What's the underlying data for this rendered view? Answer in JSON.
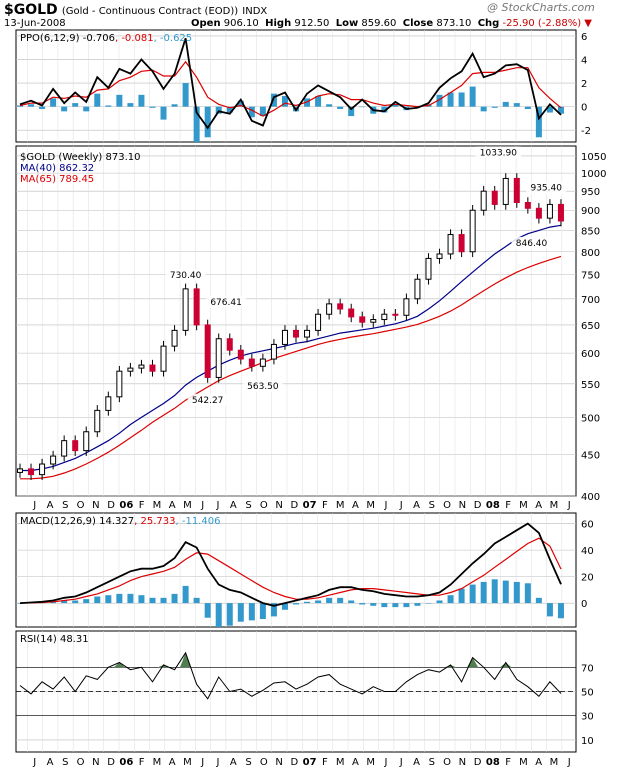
{
  "header": {
    "symbol": "$GOLD",
    "description": "(Gold - Continuous Contract (EOD))",
    "exchange": "INDX",
    "date": "13-Jun-2008",
    "open_label": "Open",
    "open": "906.10",
    "high_label": "High",
    "high": "912.50",
    "low_label": "Low",
    "low": "859.60",
    "close_label": "Close",
    "close": "873.10",
    "chg_label": "Chg",
    "chg": "-25.90 (-2.88%)",
    "watermark": "@ StockCharts.com"
  },
  "colors": {
    "up": "#000000",
    "down": "#cc0033",
    "ma40": "#00008b",
    "ma65": "#dd0000",
    "hist": "#3399cc",
    "rsi_fill": "#4f7f4f"
  },
  "chart_data": [
    {
      "type": "line",
      "title": "PPO(6,12,9)",
      "legend": [
        {
          "text": "PPO(6,12,9) -0.706"
        },
        {
          "text": ", -0.081",
          "color": "#dd0000"
        },
        {
          "text": ", -0.625",
          "color": "#3399cc"
        }
      ],
      "ylim": [
        -3,
        6.5
      ],
      "ticks": [
        6,
        4,
        2,
        0,
        -2
      ],
      "x": [
        0,
        3,
        6,
        9,
        12,
        15,
        18,
        21,
        24,
        27,
        30,
        33,
        36,
        39,
        42,
        45,
        48,
        51,
        54,
        57,
        60,
        63,
        66,
        69,
        72,
        75,
        78,
        81,
        84,
        87,
        90,
        93,
        96,
        99,
        102,
        105,
        108,
        111,
        114,
        117,
        120,
        123,
        126,
        129,
        132,
        135,
        138,
        141,
        144,
        147
      ],
      "series": [
        {
          "name": "PPO",
          "values": [
            0.2,
            0.5,
            0.1,
            1.5,
            0.3,
            1.2,
            0.4,
            2.5,
            1.6,
            3.2,
            2.8,
            4.0,
            3.0,
            1.5,
            2.8,
            5.8,
            -0.5,
            -1.8,
            -0.4,
            -0.6,
            0.6,
            -1.2,
            -1.6,
            0.8,
            1.2,
            -0.3,
            1.1,
            1.8,
            1.3,
            0.8,
            -0.2,
            0.6,
            -0.3,
            -0.4,
            0.4,
            -0.2,
            -0.1,
            0.3,
            1.6,
            2.4,
            3.0,
            4.5,
            2.5,
            2.8,
            3.5,
            3.6,
            3.1,
            -1.0,
            0.2,
            -0.7
          ]
        },
        {
          "name": "Signal",
          "values": [
            0.1,
            0.3,
            0.3,
            0.8,
            0.7,
            0.9,
            0.8,
            1.4,
            1.5,
            2.2,
            2.5,
            3.0,
            3.1,
            2.6,
            2.6,
            3.8,
            2.5,
            0.8,
            0.2,
            -0.1,
            0.1,
            -0.3,
            -0.8,
            -0.3,
            0.3,
            0.1,
            0.4,
            0.9,
            1.1,
            1.0,
            0.6,
            0.6,
            0.3,
            0.1,
            0.2,
            0.1,
            0.0,
            0.1,
            0.6,
            1.2,
            1.8,
            2.8,
            2.9,
            2.9,
            3.1,
            3.3,
            3.3,
            1.6,
            0.7,
            -0.1
          ]
        }
      ]
    },
    {
      "type": "candlestick",
      "title": "$GOLD (Weekly) 873.10",
      "legend": [
        {
          "text": "$GOLD (Weekly) 873.10",
          "color": "#000000"
        },
        {
          "text": "MA(40) 862.32",
          "color": "#00008b"
        },
        {
          "text": "MA(65) 789.45",
          "color": "#dd0000"
        }
      ],
      "scale": "log",
      "ylim": [
        400,
        1080
      ],
      "ticks": [
        1050,
        1000,
        950,
        900,
        850,
        800,
        750,
        700,
        650,
        600,
        550,
        500,
        450,
        400
      ],
      "annotations": [
        {
          "text": "730.40",
          "x": 45,
          "y": 730.4,
          "pos": "above"
        },
        {
          "text": "676.41",
          "x": 56,
          "y": 676.41,
          "pos": "above"
        },
        {
          "text": "542.27",
          "x": 51,
          "y": 542.27,
          "pos": "below"
        },
        {
          "text": "563.50",
          "x": 66,
          "y": 563.5,
          "pos": "below"
        },
        {
          "text": "1033.90",
          "x": 130,
          "y": 1033.9,
          "pos": "above"
        },
        {
          "text": "935.40",
          "x": 143,
          "y": 935.4,
          "pos": "above"
        },
        {
          "text": "846.40",
          "x": 139,
          "y": 846.4,
          "pos": "below"
        }
      ],
      "x": [
        0,
        3,
        6,
        9,
        12,
        15,
        18,
        21,
        24,
        27,
        30,
        33,
        36,
        39,
        42,
        45,
        48,
        51,
        54,
        57,
        60,
        63,
        66,
        69,
        72,
        75,
        78,
        81,
        84,
        87,
        90,
        93,
        96,
        99,
        102,
        105,
        108,
        111,
        114,
        117,
        120,
        123,
        126,
        129,
        132,
        135,
        138,
        141,
        144,
        147
      ],
      "close": [
        432,
        425,
        438,
        448,
        468,
        455,
        480,
        510,
        530,
        570,
        575,
        580,
        570,
        612,
        640,
        720,
        650,
        560,
        625,
        605,
        590,
        578,
        590,
        615,
        640,
        628,
        640,
        670,
        690,
        680,
        665,
        655,
        660,
        670,
        668,
        700,
        740,
        785,
        795,
        840,
        800,
        900,
        950,
        915,
        985,
        920,
        905,
        880,
        915,
        873
      ],
      "ma40": [
        430,
        430,
        432,
        435,
        440,
        445,
        452,
        460,
        468,
        478,
        490,
        500,
        510,
        520,
        532,
        548,
        560,
        570,
        580,
        588,
        595,
        600,
        604,
        608,
        612,
        617,
        620,
        625,
        630,
        635,
        638,
        641,
        644,
        648,
        652,
        658,
        666,
        680,
        696,
        715,
        735,
        755,
        775,
        795,
        812,
        830,
        842,
        850,
        858,
        862.32
      ],
      "ma65": [
        420,
        420,
        421,
        423,
        427,
        432,
        438,
        445,
        453,
        462,
        472,
        482,
        493,
        503,
        513,
        525,
        535,
        545,
        555,
        563,
        570,
        577,
        584,
        591,
        597,
        603,
        609,
        615,
        620,
        624,
        628,
        631,
        634,
        638,
        642,
        646,
        651,
        658,
        666,
        676,
        688,
        702,
        716,
        730,
        743,
        755,
        765,
        774,
        782,
        789.45
      ]
    },
    {
      "type": "line",
      "title": "MACD(12,26,9)",
      "legend": [
        {
          "text": "MACD(12,26,9) 14.327"
        },
        {
          "text": ", 25.733",
          "color": "#dd0000"
        },
        {
          "text": ", -11.406",
          "color": "#3399cc"
        }
      ],
      "ylim": [
        -18,
        68
      ],
      "ticks": [
        60,
        40,
        20,
        0
      ],
      "x": [
        0,
        3,
        6,
        9,
        12,
        15,
        18,
        21,
        24,
        27,
        30,
        33,
        36,
        39,
        42,
        45,
        48,
        51,
        54,
        57,
        60,
        63,
        66,
        69,
        72,
        75,
        78,
        81,
        84,
        87,
        90,
        93,
        96,
        99,
        102,
        105,
        108,
        111,
        114,
        117,
        120,
        123,
        126,
        129,
        132,
        135,
        138,
        141,
        144,
        147
      ],
      "series": [
        {
          "name": "MACD",
          "values": [
            0,
            0.5,
            1,
            2,
            4,
            5,
            8,
            12,
            16,
            20,
            24,
            26,
            26,
            28,
            34,
            46,
            42,
            26,
            14,
            10,
            8,
            4,
            0,
            -2,
            0,
            2,
            4,
            6,
            10,
            12,
            12,
            10,
            9,
            7,
            6,
            5,
            5,
            6,
            8,
            14,
            22,
            30,
            37,
            45,
            50,
            55,
            60,
            53,
            33,
            14.3
          ]
        },
        {
          "name": "Signal",
          "values": [
            0,
            0.2,
            0.5,
            1,
            2,
            3,
            5,
            7,
            10,
            13,
            17,
            20,
            22,
            24,
            27,
            33,
            38,
            37,
            32,
            27,
            22,
            17,
            12,
            8,
            5,
            3,
            3,
            4,
            6,
            8,
            10,
            11,
            11,
            10,
            9,
            8,
            7,
            6,
            6,
            8,
            11,
            16,
            21,
            27,
            33,
            39,
            45,
            49,
            43,
            25.7
          ]
        }
      ]
    },
    {
      "type": "line",
      "title": "RSI(14)",
      "legend": [
        {
          "text": "RSI(14) 48.31"
        }
      ],
      "ylim": [
        0,
        100
      ],
      "ticks": [
        70,
        50,
        30,
        10
      ],
      "x": [
        0,
        3,
        6,
        9,
        12,
        15,
        18,
        21,
        24,
        27,
        30,
        33,
        36,
        39,
        42,
        45,
        48,
        51,
        54,
        57,
        60,
        63,
        66,
        69,
        72,
        75,
        78,
        81,
        84,
        87,
        90,
        93,
        96,
        99,
        102,
        105,
        108,
        111,
        114,
        117,
        120,
        123,
        126,
        129,
        132,
        135,
        138,
        141,
        144,
        147
      ],
      "series": [
        {
          "name": "RSI",
          "values": [
            55,
            48,
            58,
            52,
            62,
            50,
            63,
            60,
            70,
            74,
            68,
            70,
            58,
            72,
            68,
            82,
            56,
            44,
            62,
            50,
            52,
            46,
            51,
            57,
            58,
            52,
            56,
            62,
            64,
            56,
            52,
            48,
            54,
            50,
            50,
            58,
            64,
            68,
            66,
            72,
            58,
            78,
            70,
            60,
            74,
            60,
            54,
            46,
            58,
            48.31
          ]
        }
      ]
    }
  ],
  "x_axis": {
    "labels": [
      "J",
      "A",
      "S",
      "O",
      "N",
      "D",
      "06",
      "F",
      "M",
      "A",
      "M",
      "J",
      "J",
      "A",
      "S",
      "O",
      "N",
      "D",
      "07",
      "F",
      "M",
      "A",
      "M",
      "J",
      "J",
      "A",
      "S",
      "O",
      "N",
      "D",
      "08",
      "F",
      "M",
      "A",
      "M",
      "J"
    ],
    "bold": [
      "06",
      "07",
      "08"
    ]
  }
}
